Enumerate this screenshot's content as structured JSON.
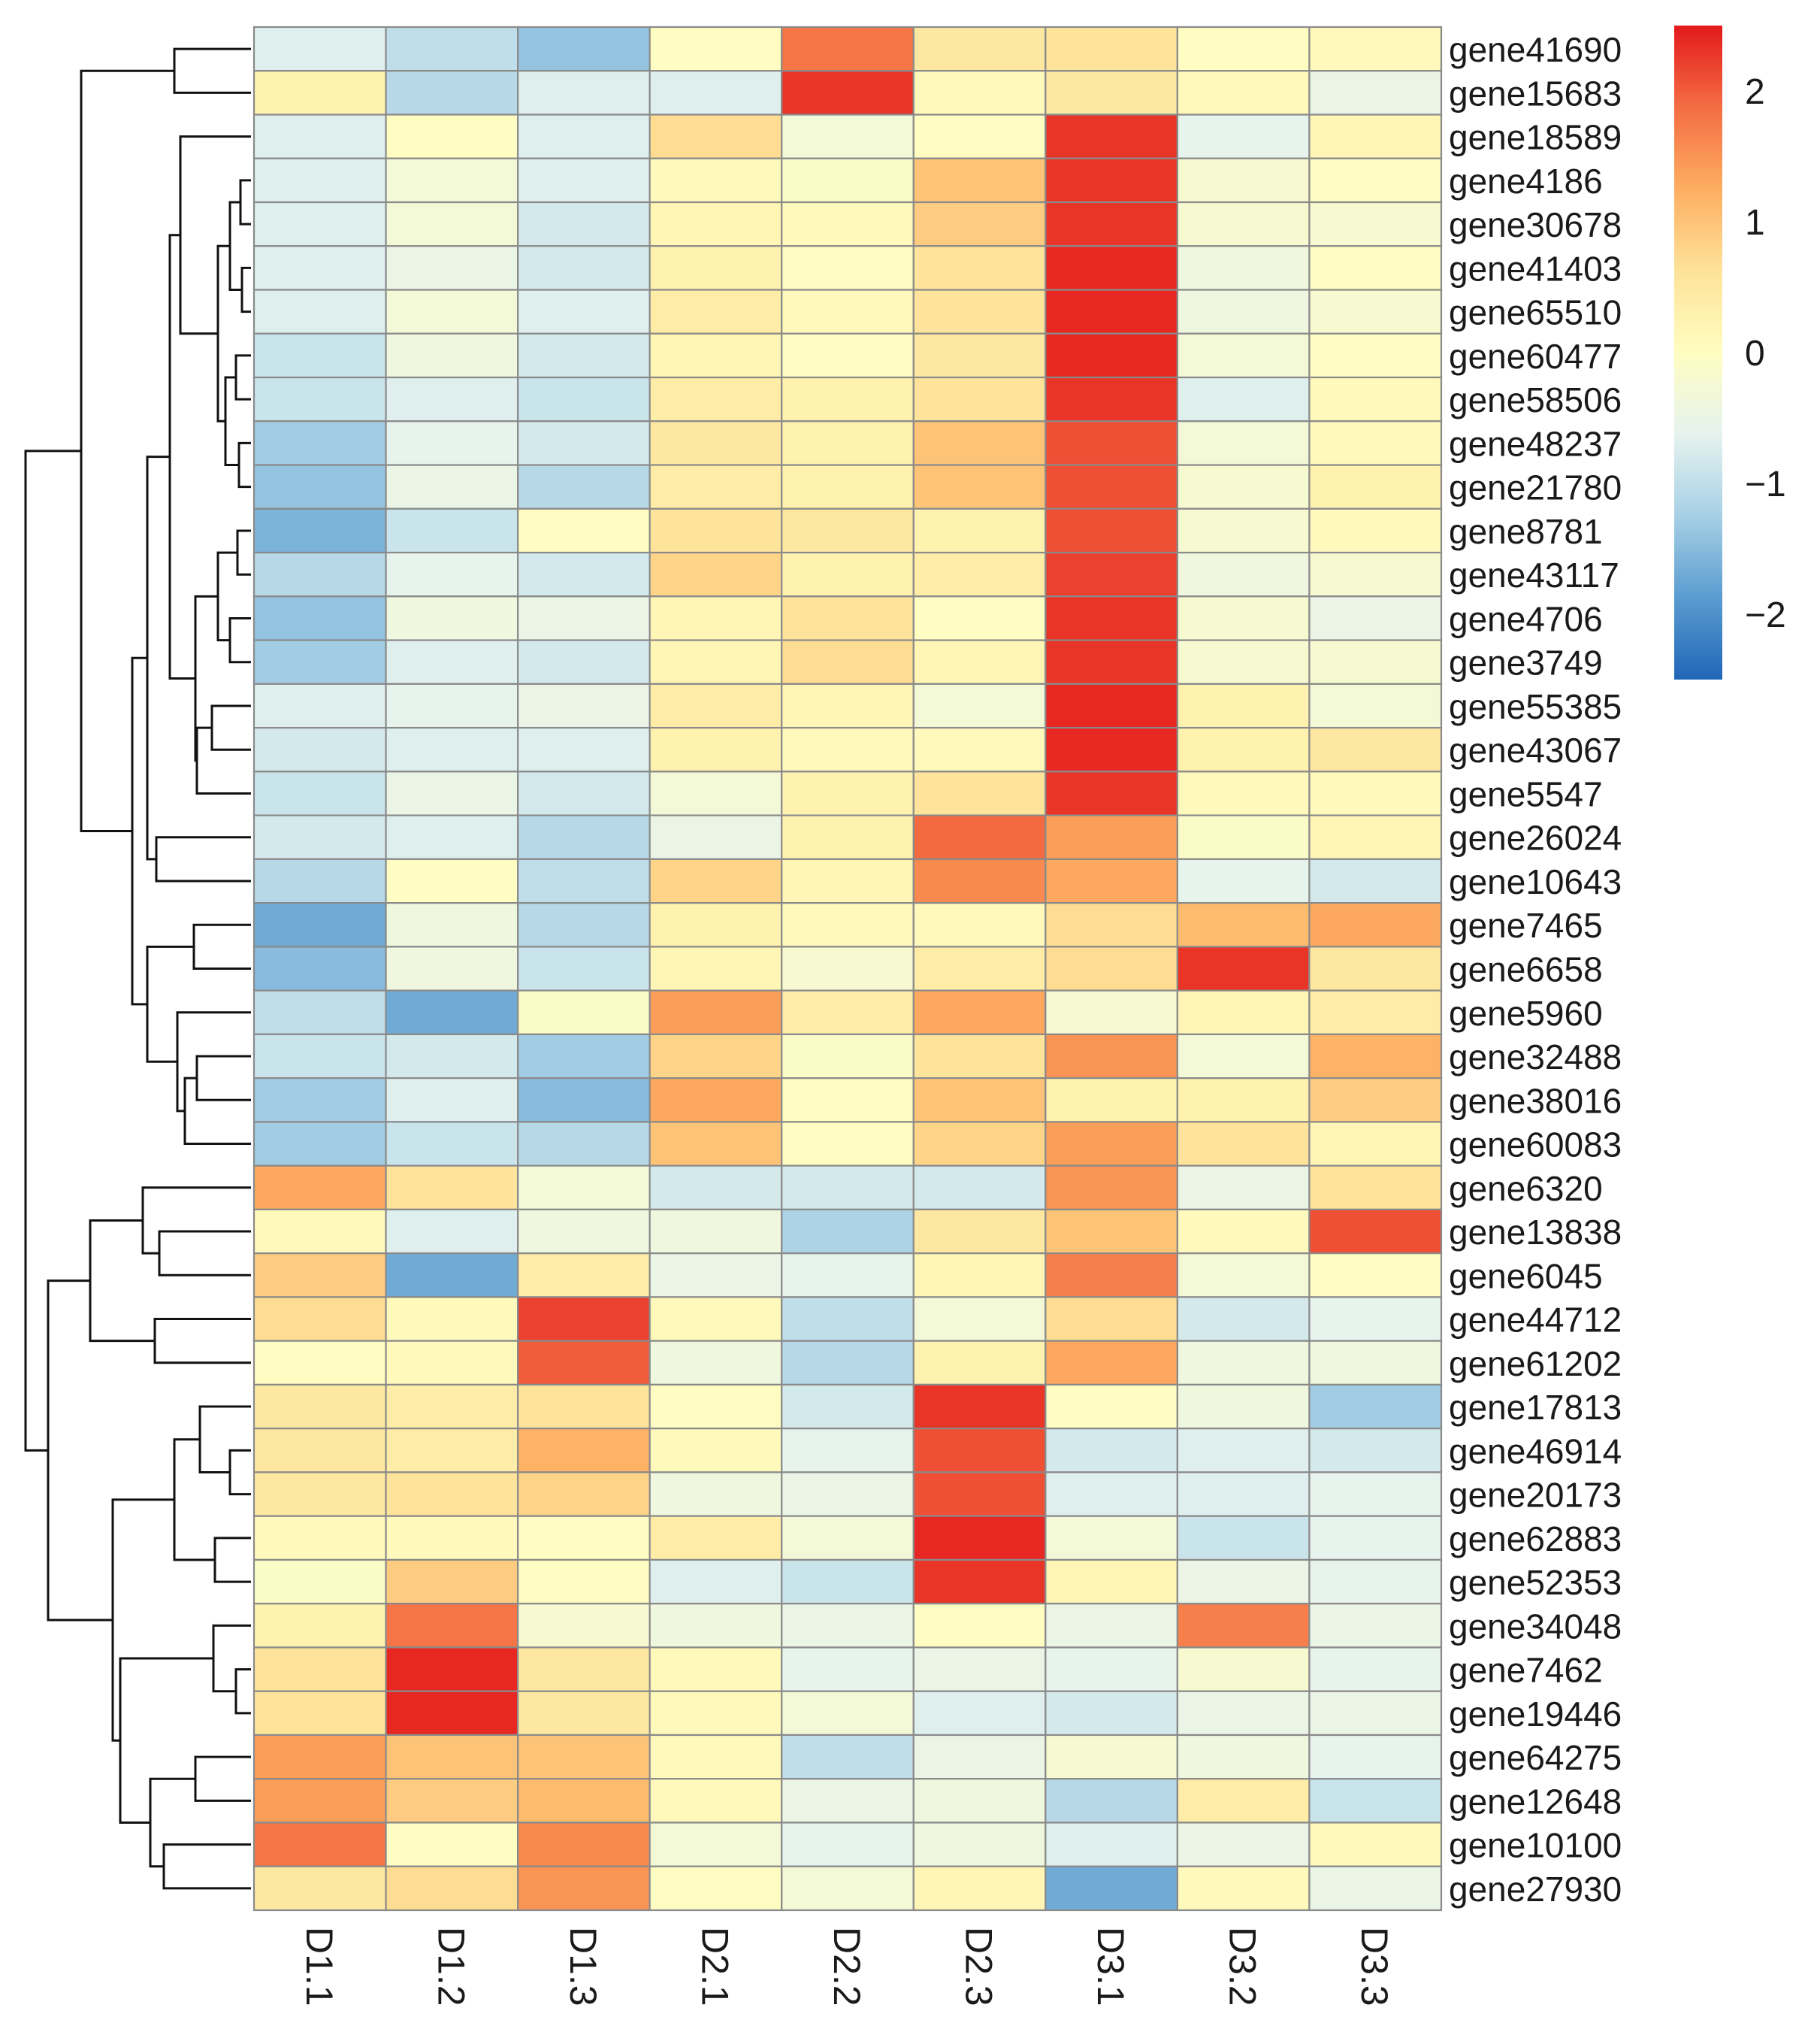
{
  "chart_data": {
    "type": "heatmap",
    "title": "",
    "columns": [
      "D1.1",
      "D1.2",
      "D1.3",
      "D2.1",
      "D2.2",
      "D2.3",
      "D3.1",
      "D3.2",
      "D3.3"
    ],
    "rows": [
      "gene41690",
      "gene15683",
      "gene18589",
      "gene4186",
      "gene30678",
      "gene41403",
      "gene65510",
      "gene60477",
      "gene58506",
      "gene48237",
      "gene21780",
      "gene8781",
      "gene43117",
      "gene4706",
      "gene3749",
      "gene55385",
      "gene43067",
      "gene5547",
      "gene26024",
      "gene10643",
      "gene7465",
      "gene6658",
      "gene5960",
      "gene32488",
      "gene38016",
      "gene60083",
      "gene6320",
      "gene13838",
      "gene6045",
      "gene44712",
      "gene61202",
      "gene17813",
      "gene46914",
      "gene20173",
      "gene62883",
      "gene52353",
      "gene34048",
      "gene7462",
      "gene19446",
      "gene64275",
      "gene12648",
      "gene10100",
      "gene27930"
    ],
    "values": [
      [
        -0.7,
        -1.0,
        -1.4,
        0.0,
        1.8,
        0.5,
        0.6,
        0.0,
        0.1
      ],
      [
        0.3,
        -1.1,
        -0.7,
        -0.7,
        2.3,
        0.1,
        0.5,
        0.1,
        -0.5
      ],
      [
        -0.7,
        0.0,
        -0.7,
        0.7,
        -0.3,
        0.0,
        2.3,
        -0.6,
        0.2
      ],
      [
        -0.7,
        -0.3,
        -0.7,
        0.1,
        -0.1,
        1.0,
        2.3,
        -0.2,
        0.0
      ],
      [
        -0.7,
        -0.3,
        -0.8,
        0.2,
        0.1,
        0.9,
        2.3,
        -0.2,
        -0.2
      ],
      [
        -0.7,
        -0.5,
        -0.8,
        0.3,
        0.0,
        0.6,
        2.4,
        -0.4,
        0.0
      ],
      [
        -0.7,
        -0.3,
        -0.7,
        0.4,
        0.1,
        0.6,
        2.4,
        -0.4,
        -0.2
      ],
      [
        -0.9,
        -0.4,
        -0.8,
        0.2,
        0.0,
        0.5,
        2.4,
        -0.3,
        0.0
      ],
      [
        -0.9,
        -0.7,
        -0.9,
        0.4,
        0.3,
        0.6,
        2.3,
        -0.7,
        0.1
      ],
      [
        -1.3,
        -0.6,
        -0.8,
        0.5,
        0.3,
        1.0,
        2.1,
        -0.3,
        0.1
      ],
      [
        -1.4,
        -0.5,
        -1.1,
        0.4,
        0.3,
        1.0,
        2.1,
        -0.2,
        0.3
      ],
      [
        -1.6,
        -0.9,
        0.0,
        0.6,
        0.5,
        0.3,
        2.1,
        -0.2,
        0.1
      ],
      [
        -1.1,
        -0.6,
        -0.8,
        0.8,
        0.3,
        0.4,
        2.2,
        -0.4,
        -0.2
      ],
      [
        -1.4,
        -0.4,
        -0.5,
        0.2,
        0.6,
        0.0,
        2.3,
        -0.2,
        -0.5
      ],
      [
        -1.3,
        -0.7,
        -0.8,
        0.2,
        0.7,
        0.2,
        2.3,
        -0.2,
        -0.2
      ],
      [
        -0.7,
        -0.6,
        -0.5,
        0.4,
        0.2,
        -0.3,
        2.4,
        0.3,
        -0.3
      ],
      [
        -0.8,
        -0.7,
        -0.7,
        0.3,
        0.1,
        0.1,
        2.4,
        0.3,
        0.5
      ],
      [
        -0.9,
        -0.5,
        -0.8,
        -0.3,
        0.3,
        0.6,
        2.3,
        0.1,
        0.1
      ],
      [
        -0.8,
        -0.7,
        -1.1,
        -0.5,
        0.3,
        1.9,
        1.4,
        -0.1,
        0.2
      ],
      [
        -1.1,
        0.0,
        -1.0,
        0.8,
        0.2,
        1.6,
        1.3,
        -0.6,
        -0.8
      ],
      [
        -1.7,
        -0.4,
        -1.1,
        0.3,
        0.1,
        0.1,
        0.7,
        1.1,
        1.3
      ],
      [
        -1.5,
        -0.4,
        -0.9,
        0.2,
        -0.2,
        0.4,
        0.7,
        2.3,
        0.5
      ],
      [
        -1.0,
        -1.7,
        -0.1,
        1.4,
        0.4,
        1.3,
        -0.2,
        0.2,
        0.4
      ],
      [
        -0.9,
        -0.8,
        -1.3,
        0.8,
        -0.1,
        0.6,
        1.5,
        -0.3,
        1.2
      ],
      [
        -1.3,
        -0.7,
        -1.5,
        1.3,
        0.0,
        1.0,
        0.3,
        0.3,
        0.9
      ],
      [
        -1.3,
        -0.9,
        -1.1,
        1.0,
        0.0,
        0.8,
        1.4,
        0.6,
        0.2
      ],
      [
        1.3,
        0.6,
        -0.3,
        -0.8,
        -0.8,
        -0.8,
        1.5,
        -0.5,
        0.6
      ],
      [
        0.1,
        -0.7,
        -0.4,
        -0.4,
        -1.2,
        0.5,
        1.0,
        0.1,
        2.1
      ],
      [
        0.9,
        -1.7,
        0.4,
        -0.5,
        -0.6,
        0.2,
        1.7,
        -0.3,
        0.0
      ],
      [
        0.7,
        0.1,
        2.2,
        0.1,
        -1.0,
        -0.3,
        0.7,
        -0.8,
        -0.6
      ],
      [
        0.0,
        0.1,
        2.0,
        -0.4,
        -1.1,
        0.3,
        1.3,
        -0.4,
        -0.4
      ],
      [
        0.5,
        0.4,
        0.6,
        0.0,
        -0.8,
        2.3,
        0.0,
        -0.4,
        -1.3
      ],
      [
        0.5,
        0.4,
        1.2,
        0.1,
        -0.6,
        2.1,
        -0.8,
        -0.7,
        -0.8
      ],
      [
        0.5,
        0.6,
        0.8,
        -0.4,
        -0.5,
        2.1,
        -0.7,
        -0.7,
        -0.6
      ],
      [
        0.1,
        0.1,
        0.0,
        0.4,
        -0.3,
        2.4,
        -0.3,
        -0.9,
        -0.6
      ],
      [
        -0.1,
        0.9,
        0.0,
        -0.7,
        -0.9,
        2.3,
        0.2,
        -0.5,
        -0.6
      ],
      [
        0.3,
        1.8,
        -0.2,
        -0.4,
        -0.5,
        0.0,
        -0.5,
        1.7,
        -0.5
      ],
      [
        0.6,
        2.4,
        0.5,
        0.1,
        -0.6,
        -0.5,
        -0.6,
        -0.2,
        -0.6
      ],
      [
        0.6,
        2.4,
        0.5,
        0.1,
        -0.3,
        -0.7,
        -0.8,
        -0.5,
        -0.5
      ],
      [
        1.4,
        1.0,
        1.0,
        0.1,
        -1.0,
        -0.5,
        -0.2,
        -0.4,
        -0.6
      ],
      [
        1.4,
        0.9,
        1.1,
        0.1,
        -0.5,
        -0.4,
        -1.1,
        0.4,
        -0.9
      ],
      [
        1.8,
        0.0,
        1.6,
        -0.3,
        -0.6,
        -0.4,
        -0.7,
        -0.5,
        0.1
      ],
      [
        0.5,
        0.7,
        1.5,
        0.0,
        -0.3,
        0.2,
        -1.7,
        0.1,
        -0.5
      ]
    ],
    "colorbar": {
      "range": [
        -2.5,
        2.5
      ],
      "ticks": [
        "2",
        "1",
        "0",
        "−1",
        "−2"
      ],
      "tick_values": [
        2,
        1,
        0,
        -1,
        -2
      ],
      "palette": [
        "#2166b7",
        "#5a9cd0",
        "#a7d0e5",
        "#e6f3ef",
        "#fffdc1",
        "#fee399",
        "#fdae61",
        "#f46d43",
        "#e31a1c"
      ]
    },
    "xlabel": "",
    "ylabel": "",
    "row_dendrogram": true,
    "legend_position": "top-right",
    "cell_border_color": "#8a8a8a"
  }
}
